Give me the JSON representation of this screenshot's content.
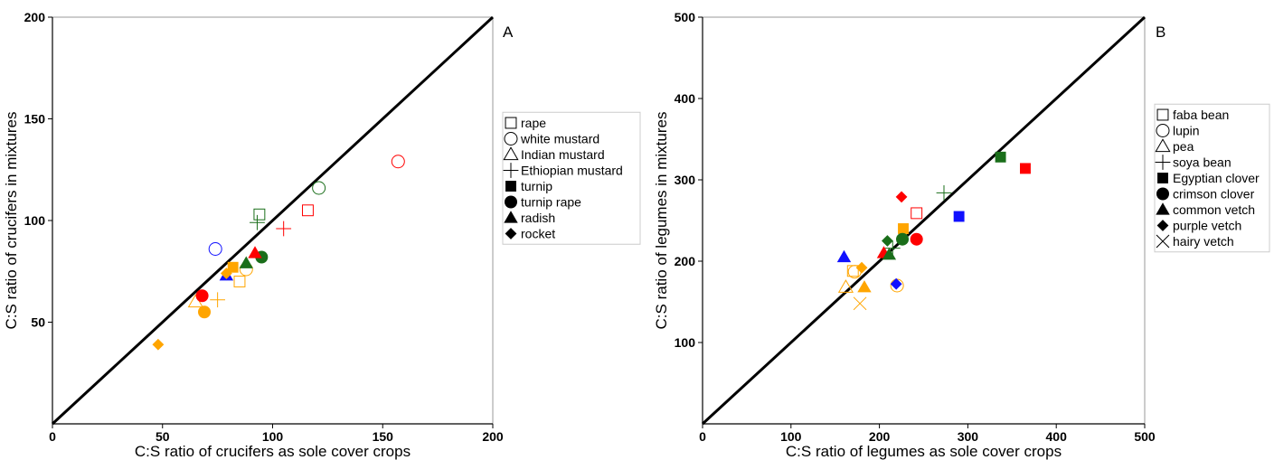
{
  "colors": {
    "red": "#ff0000",
    "green": "#1a6e1a",
    "blue": "#1010ff",
    "orange": "#ffa500",
    "black": "#000000"
  },
  "chart_data": [
    {
      "type": "scatter",
      "panel_label": "A",
      "xlabel": "C:S ratio of crucifers as sole cover crops",
      "ylabel": "C:S ratio of crucifers in mixtures",
      "xlim": [
        0,
        200
      ],
      "ylim": [
        0,
        200
      ],
      "xticks": [
        0,
        50,
        100,
        150,
        200
      ],
      "yticks": [
        50,
        100,
        150,
        200
      ],
      "reference_line": "1:1",
      "grid": false,
      "legend_position": "right",
      "legend": [
        {
          "label": "rape",
          "marker": "square-open"
        },
        {
          "label": "white mustard",
          "marker": "circle-open"
        },
        {
          "label": "Indian mustard",
          "marker": "triangle-open"
        },
        {
          "label": "Ethiopian mustard",
          "marker": "plus"
        },
        {
          "label": "turnip",
          "marker": "square"
        },
        {
          "label": "turnip rape",
          "marker": "circle"
        },
        {
          "label": "radish",
          "marker": "triangle"
        },
        {
          "label": "rocket",
          "marker": "diamond"
        }
      ],
      "points": [
        {
          "x": 157,
          "y": 129,
          "marker": "circle-open",
          "color": "red"
        },
        {
          "x": 121,
          "y": 116,
          "marker": "circle-open",
          "color": "green"
        },
        {
          "x": 74,
          "y": 86,
          "marker": "circle-open",
          "color": "blue"
        },
        {
          "x": 116,
          "y": 105,
          "marker": "square-open",
          "color": "red"
        },
        {
          "x": 94,
          "y": 103,
          "marker": "square-open",
          "color": "green"
        },
        {
          "x": 85,
          "y": 70,
          "marker": "square-open",
          "color": "orange"
        },
        {
          "x": 105,
          "y": 96,
          "marker": "plus",
          "color": "red"
        },
        {
          "x": 93,
          "y": 99,
          "marker": "plus",
          "color": "green"
        },
        {
          "x": 75,
          "y": 61,
          "marker": "plus",
          "color": "orange"
        },
        {
          "x": 88,
          "y": 76,
          "marker": "circle-open",
          "color": "orange"
        },
        {
          "x": 65,
          "y": 60,
          "marker": "triangle-open",
          "color": "orange"
        },
        {
          "x": 82,
          "y": 77,
          "marker": "square",
          "color": "orange"
        },
        {
          "x": 68,
          "y": 63,
          "marker": "circle",
          "color": "red"
        },
        {
          "x": 95,
          "y": 82,
          "marker": "circle",
          "color": "green"
        },
        {
          "x": 69,
          "y": 55,
          "marker": "circle",
          "color": "orange"
        },
        {
          "x": 92,
          "y": 84,
          "marker": "triangle",
          "color": "red"
        },
        {
          "x": 88,
          "y": 79,
          "marker": "triangle",
          "color": "green"
        },
        {
          "x": 79,
          "y": 73,
          "marker": "triangle",
          "color": "blue"
        },
        {
          "x": 79,
          "y": 74,
          "marker": "diamond",
          "color": "orange"
        },
        {
          "x": 48,
          "y": 39,
          "marker": "diamond",
          "color": "orange"
        }
      ]
    },
    {
      "type": "scatter",
      "panel_label": "B",
      "xlabel": "C:S ratio of legumes as sole cover crops",
      "ylabel": "C:S ratio of legumes in mixtures",
      "xlim": [
        0,
        500
      ],
      "ylim": [
        0,
        500
      ],
      "xticks": [
        0,
        100,
        200,
        300,
        400,
        500
      ],
      "yticks": [
        100,
        200,
        300,
        400,
        500
      ],
      "reference_line": "1:1",
      "grid": false,
      "legend_position": "right",
      "legend": [
        {
          "label": "faba bean",
          "marker": "square-open"
        },
        {
          "label": "lupin",
          "marker": "circle-open"
        },
        {
          "label": "pea",
          "marker": "triangle-open"
        },
        {
          "label": "soya bean",
          "marker": "plus"
        },
        {
          "label": "Egyptian clover",
          "marker": "square"
        },
        {
          "label": "crimson clover",
          "marker": "circle"
        },
        {
          "label": "common vetch",
          "marker": "triangle"
        },
        {
          "label": "purple vetch",
          "marker": "diamond"
        },
        {
          "label": "hairy vetch",
          "marker": "cross"
        }
      ],
      "points": [
        {
          "x": 242,
          "y": 259,
          "marker": "square-open",
          "color": "red"
        },
        {
          "x": 170,
          "y": 188,
          "marker": "square-open",
          "color": "orange"
        },
        {
          "x": 172,
          "y": 187,
          "marker": "circle-open",
          "color": "orange"
        },
        {
          "x": 220,
          "y": 170,
          "marker": "circle-open",
          "color": "orange"
        },
        {
          "x": 162,
          "y": 168,
          "marker": "triangle-open",
          "color": "orange"
        },
        {
          "x": 273,
          "y": 284,
          "marker": "plus",
          "color": "green"
        },
        {
          "x": 215,
          "y": 216,
          "marker": "plus",
          "color": "green"
        },
        {
          "x": 337,
          "y": 328,
          "marker": "square",
          "color": "green"
        },
        {
          "x": 365,
          "y": 314,
          "marker": "square",
          "color": "red"
        },
        {
          "x": 290,
          "y": 255,
          "marker": "square",
          "color": "blue"
        },
        {
          "x": 227,
          "y": 240,
          "marker": "square",
          "color": "orange"
        },
        {
          "x": 242,
          "y": 227,
          "marker": "circle",
          "color": "red"
        },
        {
          "x": 226,
          "y": 227,
          "marker": "circle",
          "color": "green"
        },
        {
          "x": 160,
          "y": 205,
          "marker": "triangle",
          "color": "blue"
        },
        {
          "x": 205,
          "y": 210,
          "marker": "triangle",
          "color": "red"
        },
        {
          "x": 211,
          "y": 208,
          "marker": "triangle",
          "color": "green"
        },
        {
          "x": 183,
          "y": 168,
          "marker": "triangle",
          "color": "orange"
        },
        {
          "x": 225,
          "y": 279,
          "marker": "diamond",
          "color": "red"
        },
        {
          "x": 209,
          "y": 225,
          "marker": "diamond",
          "color": "green"
        },
        {
          "x": 219,
          "y": 172,
          "marker": "diamond",
          "color": "blue"
        },
        {
          "x": 180,
          "y": 192,
          "marker": "diamond",
          "color": "orange"
        },
        {
          "x": 178,
          "y": 148,
          "marker": "cross",
          "color": "orange"
        }
      ]
    }
  ]
}
